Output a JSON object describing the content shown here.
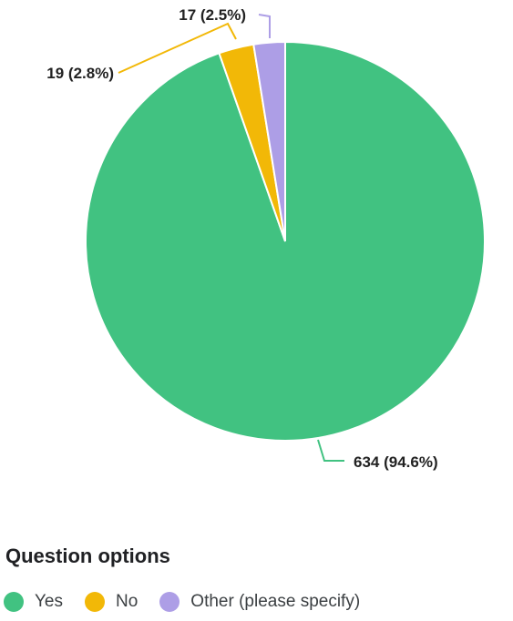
{
  "chart_data": {
    "type": "pie",
    "categories": [
      "Yes",
      "No",
      "Other (please specify)"
    ],
    "values": [
      634,
      19,
      17
    ],
    "data_labels": [
      "634 (94.6%)",
      "19 (2.8%)",
      "17 (2.5%)"
    ],
    "colors": [
      "#41c281",
      "#f2b807",
      "#ad9ee6"
    ],
    "legend_title": "Question options",
    "legend_position": "bottom-left",
    "title": "",
    "label_style": "outside with leader lines"
  }
}
